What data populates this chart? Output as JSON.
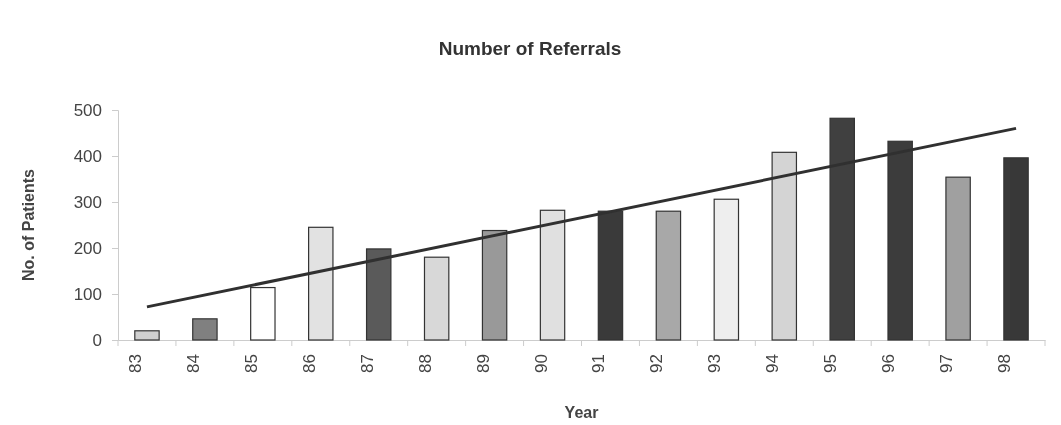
{
  "chart_data": {
    "type": "bar",
    "title": "Number of Referrals",
    "xlabel": "Year",
    "ylabel": "No. of Patients",
    "categories": [
      "83",
      "84",
      "85",
      "86",
      "87",
      "88",
      "89",
      "90",
      "91",
      "92",
      "93",
      "94",
      "95",
      "96",
      "97",
      "98"
    ],
    "series": [
      {
        "values": [
          20,
          46,
          114,
          245,
          198,
          180,
          238,
          282,
          280,
          280,
          306,
          408,
          482,
          432,
          354,
          396
        ],
        "colors": [
          "#d0d0d0",
          "#808080",
          "#ffffff",
          "#e2e2e2",
          "#5a5a5a",
          "#d8d8d8",
          "#999999",
          "#e0e0e0",
          "#3a3a3a",
          "#a8a8a8",
          "#eeeeee",
          "#d4d4d4",
          "#404040",
          "#3c3c3c",
          "#a0a0a0",
          "#383838"
        ]
      },
      {
        "type": "line",
        "x": [
          "83",
          "98"
        ],
        "values": [
          72,
          460
        ],
        "color": "#303030"
      }
    ],
    "ylim": [
      0,
      500
    ],
    "yticks": [
      0,
      100,
      200,
      300,
      400,
      500
    ],
    "grid": false
  }
}
